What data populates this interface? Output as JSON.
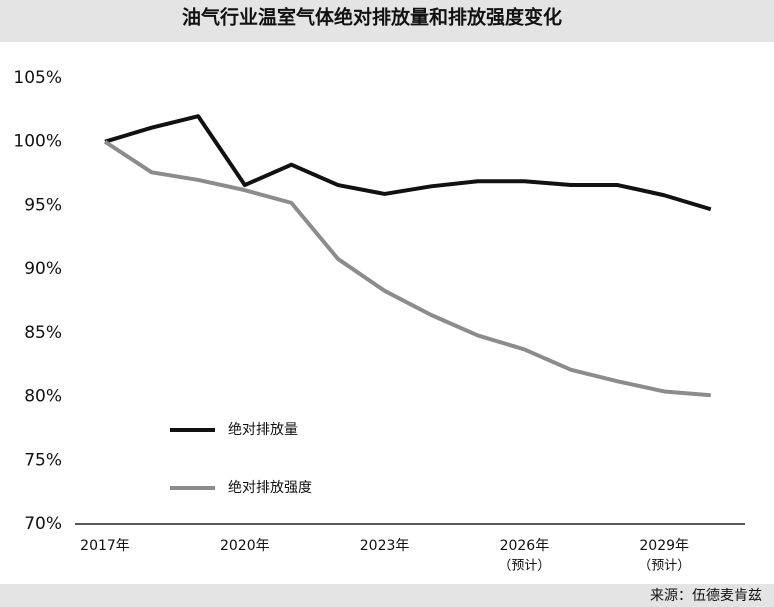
{
  "chart_data": {
    "type": "line",
    "title": "油气行业温室气体绝对排放量和排放强度变化",
    "source": "来源：伍德麦肯兹",
    "categories": [
      "2017年",
      null,
      null,
      "2020年",
      null,
      null,
      "2023年",
      null,
      null,
      "2026年",
      null,
      null,
      "2029年",
      null
    ],
    "x_sublabels": [
      null,
      null,
      null,
      null,
      null,
      null,
      null,
      null,
      null,
      "（预计）",
      null,
      null,
      "（预计）",
      null
    ],
    "series": [
      {
        "name": "绝对排放量",
        "color": "#111111",
        "values": [
          100,
          101.1,
          102,
          96.6,
          98.2,
          96.6,
          95.9,
          96.5,
          96.9,
          96.9,
          96.6,
          96.6,
          95.8,
          94.7
        ]
      },
      {
        "name": "绝对排放强度",
        "color": "#8c8c8c",
        "values": [
          100,
          97.6,
          97.0,
          96.2,
          95.2,
          90.8,
          88.3,
          86.4,
          84.8,
          83.7,
          82.1,
          81.2,
          80.4,
          80.1
        ]
      }
    ],
    "ylim": [
      70,
      105
    ],
    "yticks": [
      {
        "value": 70,
        "label": "70%"
      },
      {
        "value": 75,
        "label": "75%"
      },
      {
        "value": 80,
        "label": "80%"
      },
      {
        "value": 85,
        "label": "85%"
      },
      {
        "value": 90,
        "label": "90%"
      },
      {
        "value": 95,
        "label": "95%"
      },
      {
        "value": 100,
        "label": "100%"
      },
      {
        "value": 105,
        "label": "105%"
      }
    ],
    "grid": false
  }
}
